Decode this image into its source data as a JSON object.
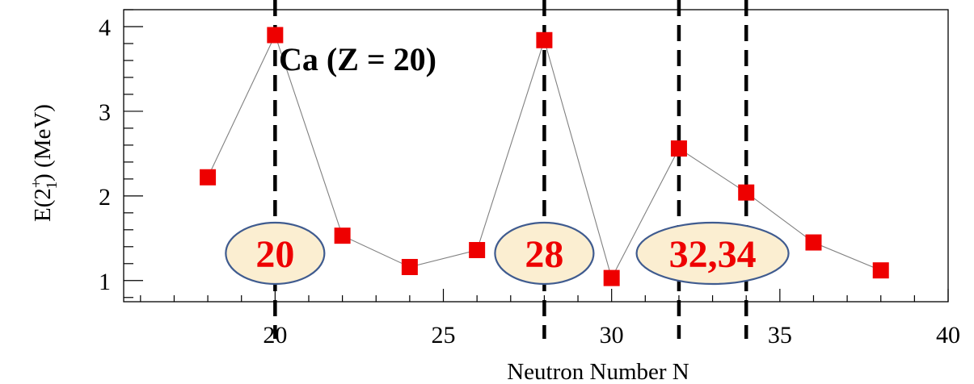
{
  "chart_data": {
    "type": "scatter",
    "title": "Ca (Z = 20)",
    "xlabel": "Neutron Number N",
    "ylabel": "E(2",
    "ylabel_sup": "+",
    "ylabel_sub": "1",
    "ylabel_tail": ") (MeV)",
    "xlim": [
      15.5,
      40
    ],
    "ylim": [
      0.75,
      4.2
    ],
    "x_ticks": [
      20,
      25,
      30,
      35,
      40
    ],
    "y_ticks": [
      1,
      2,
      3,
      4
    ],
    "grid": false,
    "series": [
      {
        "marker": "square",
        "line": "thin-gray",
        "points": [
          {
            "x": 18,
            "y": 2.22
          },
          {
            "x": 20,
            "y": 3.9
          },
          {
            "x": 22,
            "y": 1.53
          },
          {
            "x": 24,
            "y": 1.16
          },
          {
            "x": 26,
            "y": 1.36
          },
          {
            "x": 28,
            "y": 3.84
          },
          {
            "x": 30,
            "y": 1.03
          },
          {
            "x": 32,
            "y": 2.56
          },
          {
            "x": 34,
            "y": 2.04
          },
          {
            "x": 36,
            "y": 1.45
          },
          {
            "x": 38,
            "y": 1.12
          }
        ]
      }
    ],
    "magic_lines": [
      20,
      28,
      32,
      34
    ],
    "magic_labels": [
      {
        "text": "20",
        "x": 20
      },
      {
        "text": "28",
        "x": 28
      },
      {
        "text": "32,34",
        "x": 33
      }
    ]
  },
  "colors": {
    "marker": "#ee0000",
    "connector": "#808080",
    "label_text": "#ee0000",
    "ellipse_fill": "#fbeed1",
    "ellipse_stroke": "#3f5b8f",
    "dashed_line": "#000000"
  }
}
